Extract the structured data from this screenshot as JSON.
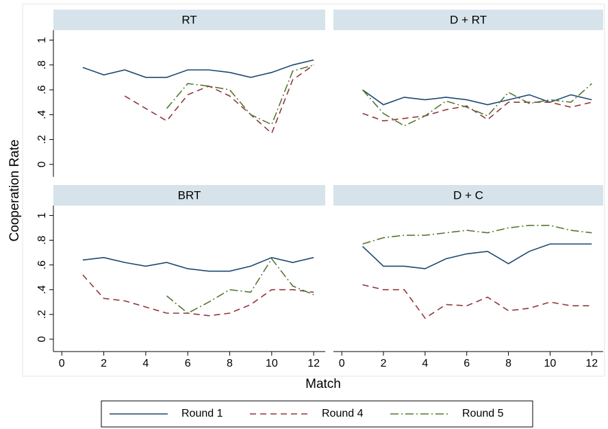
{
  "ylabel": "Cooperation Rate",
  "xlabel": "Match",
  "chart_data": [
    {
      "type": "line",
      "title": "RT",
      "x": [
        1,
        2,
        3,
        4,
        5,
        6,
        7,
        8,
        9,
        10,
        11,
        12
      ],
      "xlim": [
        -0.4,
        12.55
      ],
      "xticks": [
        0,
        2,
        4,
        6,
        8,
        10,
        12
      ],
      "ylim": [
        -0.1,
        1.08
      ],
      "yticks": [
        0,
        {
          "value": 0.2,
          "label": ".2"
        },
        {
          "value": 0.4,
          "label": ".4"
        },
        {
          "value": 0.6,
          "label": ".6"
        },
        {
          "value": 0.8,
          "label": ".8"
        },
        1
      ],
      "series": [
        {
          "name": "Round 1",
          "color": "#1a476f",
          "style": "solid",
          "values": [
            0.78,
            0.72,
            0.76,
            0.7,
            0.7,
            0.76,
            0.76,
            0.74,
            0.7,
            0.74,
            0.8,
            0.84
          ]
        },
        {
          "name": "Round 4",
          "color": "#90353b",
          "style": "dash",
          "values": [
            null,
            null,
            0.55,
            0.45,
            0.35,
            0.56,
            0.63,
            0.55,
            0.4,
            0.25,
            0.68,
            0.8
          ]
        },
        {
          "name": "Round 5",
          "color": "#55752f",
          "style": "dashdot",
          "values": [
            null,
            null,
            null,
            null,
            0.45,
            0.65,
            0.63,
            0.6,
            0.4,
            0.32,
            0.75,
            0.8
          ]
        }
      ]
    },
    {
      "type": "line",
      "title": "D + RT",
      "x": [
        1,
        2,
        3,
        4,
        5,
        6,
        7,
        8,
        9,
        10,
        11,
        12
      ],
      "xlim": [
        -0.4,
        12.55
      ],
      "xticks": [
        0,
        2,
        4,
        6,
        8,
        10,
        12
      ],
      "ylim": [
        -0.1,
        1.08
      ],
      "yticks": [
        0,
        {
          "value": 0.2,
          "label": ".2"
        },
        {
          "value": 0.4,
          "label": ".4"
        },
        {
          "value": 0.6,
          "label": ".6"
        },
        {
          "value": 0.8,
          "label": ".8"
        },
        1
      ],
      "series": [
        {
          "name": "Round 1",
          "color": "#1a476f",
          "style": "solid",
          "values": [
            0.6,
            0.48,
            0.54,
            0.52,
            0.54,
            0.52,
            0.48,
            0.52,
            0.56,
            0.5,
            0.56,
            0.52
          ]
        },
        {
          "name": "Round 4",
          "color": "#90353b",
          "style": "dash",
          "values": [
            0.41,
            0.35,
            0.37,
            0.39,
            0.44,
            0.47,
            0.36,
            0.5,
            0.5,
            0.5,
            0.46,
            0.5
          ]
        },
        {
          "name": "Round 5",
          "color": "#55752f",
          "style": "dashdot",
          "values": [
            0.6,
            0.41,
            0.31,
            0.39,
            0.51,
            0.46,
            0.39,
            0.58,
            0.49,
            0.52,
            0.5,
            0.65
          ]
        }
      ]
    },
    {
      "type": "line",
      "title": "BRT",
      "x": [
        1,
        2,
        3,
        4,
        5,
        6,
        7,
        8,
        9,
        10,
        11,
        12
      ],
      "xlim": [
        -0.4,
        12.55
      ],
      "xticks": [
        0,
        2,
        4,
        6,
        8,
        10,
        12
      ],
      "ylim": [
        -0.1,
        1.08
      ],
      "yticks": [
        0,
        {
          "value": 0.2,
          "label": ".2"
        },
        {
          "value": 0.4,
          "label": ".4"
        },
        {
          "value": 0.6,
          "label": ".6"
        },
        {
          "value": 0.8,
          "label": ".8"
        },
        1
      ],
      "series": [
        {
          "name": "Round 1",
          "color": "#1a476f",
          "style": "solid",
          "values": [
            0.64,
            0.66,
            0.62,
            0.59,
            0.62,
            0.57,
            0.55,
            0.55,
            0.59,
            0.66,
            0.62,
            0.66
          ]
        },
        {
          "name": "Round 4",
          "color": "#90353b",
          "style": "dash",
          "values": [
            0.52,
            0.33,
            0.31,
            0.26,
            0.21,
            0.21,
            0.19,
            0.21,
            0.28,
            0.4,
            0.4,
            0.38
          ]
        },
        {
          "name": "Round 5",
          "color": "#55752f",
          "style": "dashdot",
          "values": [
            null,
            null,
            null,
            null,
            0.35,
            0.21,
            0.3,
            0.4,
            0.38,
            0.65,
            0.43,
            0.36
          ]
        }
      ]
    },
    {
      "type": "line",
      "title": "D + C",
      "x": [
        1,
        2,
        3,
        4,
        5,
        6,
        7,
        8,
        9,
        10,
        11,
        12
      ],
      "xlim": [
        -0.4,
        12.55
      ],
      "xticks": [
        0,
        2,
        4,
        6,
        8,
        10,
        12
      ],
      "ylim": [
        -0.1,
        1.08
      ],
      "yticks": [
        0,
        {
          "value": 0.2,
          "label": ".2"
        },
        {
          "value": 0.4,
          "label": ".4"
        },
        {
          "value": 0.6,
          "label": ".6"
        },
        {
          "value": 0.8,
          "label": ".8"
        },
        1
      ],
      "series": [
        {
          "name": "Round 1",
          "color": "#1a476f",
          "style": "solid",
          "values": [
            0.75,
            0.59,
            0.59,
            0.57,
            0.65,
            0.69,
            0.71,
            0.61,
            0.71,
            0.77,
            0.77,
            0.77
          ]
        },
        {
          "name": "Round 4",
          "color": "#90353b",
          "style": "dash",
          "values": [
            0.44,
            0.4,
            0.4,
            0.17,
            0.28,
            0.27,
            0.34,
            0.23,
            0.25,
            0.3,
            0.27,
            0.27
          ]
        },
        {
          "name": "Round 5",
          "color": "#55752f",
          "style": "dashdot",
          "values": [
            0.77,
            0.82,
            0.84,
            0.84,
            0.86,
            0.88,
            0.86,
            0.9,
            0.92,
            0.92,
            0.88,
            0.86
          ]
        }
      ]
    }
  ]
}
